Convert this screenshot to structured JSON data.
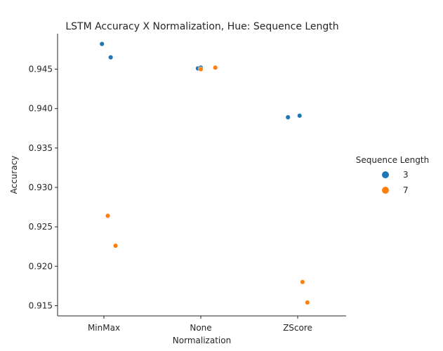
{
  "chart_data": {
    "type": "scatter",
    "title": "LSTM Accuracy X Normalization, Hue: Sequence Length",
    "xlabel": "Normalization",
    "ylabel": "Accuracy",
    "categories": [
      "MinMax",
      "None",
      "ZScore"
    ],
    "ylim": [
      0.9137,
      0.9495
    ],
    "yticks": [
      0.915,
      0.92,
      0.925,
      0.93,
      0.935,
      0.94,
      0.945
    ],
    "ytick_labels": [
      "0.915",
      "0.920",
      "0.925",
      "0.930",
      "0.935",
      "0.940",
      "0.945"
    ],
    "grid": false,
    "legend": {
      "title": "Sequence Length",
      "placement": "right"
    },
    "series": [
      {
        "name": "3",
        "color": "#1f77b4",
        "points": [
          {
            "category": "MinMax",
            "jitter": -0.02,
            "y": 0.9482
          },
          {
            "category": "MinMax",
            "jitter": 0.07,
            "y": 0.9465
          },
          {
            "category": "None",
            "jitter": -0.03,
            "y": 0.9451
          },
          {
            "category": "None",
            "jitter": 0.0,
            "y": 0.9452
          },
          {
            "category": "ZScore",
            "jitter": -0.1,
            "y": 0.9389
          },
          {
            "category": "ZScore",
            "jitter": 0.02,
            "y": 0.9391
          }
        ]
      },
      {
        "name": "7",
        "color": "#ff7f0e",
        "points": [
          {
            "category": "MinMax",
            "jitter": 0.04,
            "y": 0.9264
          },
          {
            "category": "MinMax",
            "jitter": 0.12,
            "y": 0.9226
          },
          {
            "category": "None",
            "jitter": 0.0,
            "y": 0.945
          },
          {
            "category": "None",
            "jitter": 0.15,
            "y": 0.9452
          },
          {
            "category": "ZScore",
            "jitter": 0.05,
            "y": 0.918
          },
          {
            "category": "ZScore",
            "jitter": 0.1,
            "y": 0.9154
          }
        ]
      }
    ]
  }
}
